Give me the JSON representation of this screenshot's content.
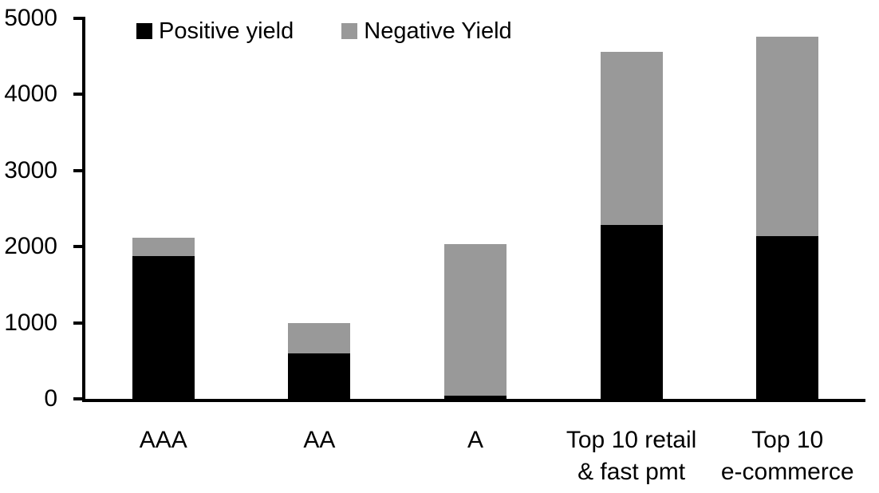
{
  "chart_data": {
    "type": "bar",
    "stacked": true,
    "title": "",
    "xlabel": "",
    "ylabel": "",
    "categories": [
      "AAA",
      "AA",
      "A",
      "Top 10 retail\n& fast pmt",
      "Top 10\ne-commerce"
    ],
    "series": [
      {
        "name": "Positive yield",
        "color": "#000000",
        "values": [
          1880,
          600,
          40,
          2280,
          2140
        ]
      },
      {
        "name": "Negative Yield",
        "color": "#999999",
        "values": [
          240,
          400,
          1990,
          2280,
          2620
        ]
      }
    ],
    "ylim": [
      0,
      5000
    ],
    "yticks": [
      "0",
      "1000",
      "2000",
      "3000",
      "4000",
      "5000"
    ],
    "grid": false,
    "legend_position": "top-left-inside"
  },
  "colors": {
    "axis": "#000000",
    "background": "#ffffff",
    "positive": "#000000",
    "negative": "#999999"
  }
}
